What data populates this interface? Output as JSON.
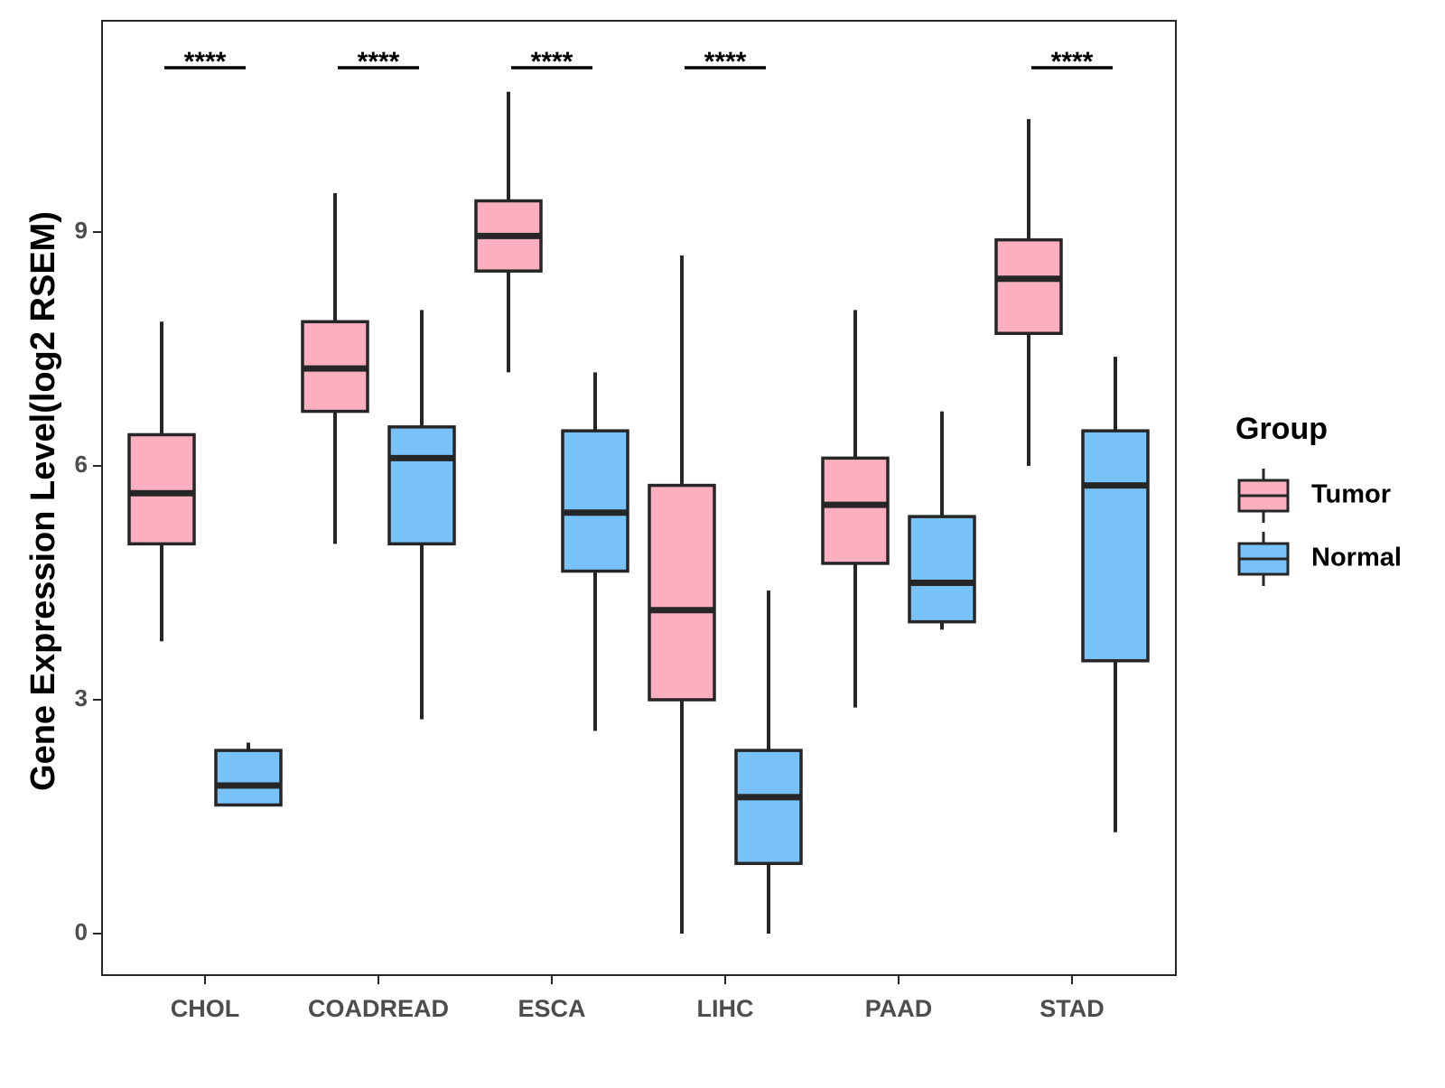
{
  "chart_data": {
    "type": "boxplot",
    "title": "",
    "xlabel": "",
    "ylabel": "Gene Expression Level(log2 RSEM)",
    "ylim": [
      -0.5,
      11.8
    ],
    "yticks": [
      0,
      3,
      6,
      9
    ],
    "grid": false,
    "legend": {
      "title": "Group",
      "position": "right"
    },
    "categories": [
      "CHOL",
      "COADREAD",
      "ESCA",
      "LIHC",
      "PAAD",
      "STAD"
    ],
    "colors": {
      "Tumor": "#fbafc1",
      "Normal": "#78c1f9",
      "stroke": "#262626"
    },
    "series": [
      {
        "name": "Tumor",
        "boxes": [
          {
            "category": "CHOL",
            "whisker_low": 3.75,
            "q1": 5.0,
            "median": 5.65,
            "q3": 6.4,
            "whisker_high": 7.85
          },
          {
            "category": "COADREAD",
            "whisker_low": 5.0,
            "q1": 6.7,
            "median": 7.25,
            "q3": 7.85,
            "whisker_high": 9.5
          },
          {
            "category": "ESCA",
            "whisker_low": 7.2,
            "q1": 8.5,
            "median": 8.95,
            "q3": 9.4,
            "whisker_high": 10.8
          },
          {
            "category": "LIHC",
            "whisker_low": 0.0,
            "q1": 3.0,
            "median": 4.15,
            "q3": 5.75,
            "whisker_high": 8.7
          },
          {
            "category": "PAAD",
            "whisker_low": 2.9,
            "q1": 4.75,
            "median": 5.5,
            "q3": 6.1,
            "whisker_high": 8.0
          },
          {
            "category": "STAD",
            "whisker_low": 6.0,
            "q1": 7.7,
            "median": 8.4,
            "q3": 8.9,
            "whisker_high": 10.45
          }
        ]
      },
      {
        "name": "Normal",
        "boxes": [
          {
            "category": "CHOL",
            "whisker_low": 1.65,
            "q1": 1.65,
            "median": 1.9,
            "q3": 2.35,
            "whisker_high": 2.45
          },
          {
            "category": "COADREAD",
            "whisker_low": 2.75,
            "q1": 5.0,
            "median": 6.1,
            "q3": 6.5,
            "whisker_high": 8.0
          },
          {
            "category": "ESCA",
            "whisker_low": 2.6,
            "q1": 4.65,
            "median": 5.4,
            "q3": 6.45,
            "whisker_high": 7.2
          },
          {
            "category": "LIHC",
            "whisker_low": 0.0,
            "q1": 0.9,
            "median": 1.75,
            "q3": 2.35,
            "whisker_high": 4.4
          },
          {
            "category": "PAAD",
            "whisker_low": 3.9,
            "q1": 4.0,
            "median": 4.5,
            "q3": 5.35,
            "whisker_high": 6.7
          },
          {
            "category": "STAD",
            "whisker_low": 1.3,
            "q1": 3.5,
            "median": 5.75,
            "q3": 6.45,
            "whisker_high": 7.4
          }
        ]
      }
    ],
    "significance": [
      {
        "category": "CHOL",
        "label": "****"
      },
      {
        "category": "COADREAD",
        "label": "****"
      },
      {
        "category": "ESCA",
        "label": "****"
      },
      {
        "category": "LIHC",
        "label": "****"
      },
      {
        "category": "STAD",
        "label": "****"
      }
    ]
  }
}
